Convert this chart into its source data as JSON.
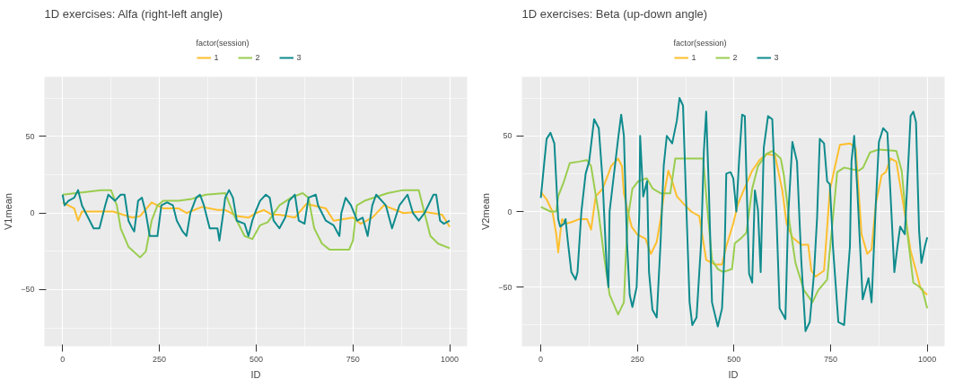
{
  "chart_data": [
    {
      "type": "line",
      "title": "1D exercises: Alfa (right-left angle)",
      "xlabel": "ID",
      "ylabel": "V1mean",
      "legend_title": "factor(session)",
      "legend": "top",
      "grid": true,
      "xlim": [
        -47,
        1045
      ],
      "ylim": [
        -87,
        89
      ],
      "xticks": [
        0,
        250,
        500,
        750,
        1000
      ],
      "yticks": [
        -50,
        0,
        50
      ],
      "series": [
        {
          "name": "1",
          "color": "#fdbf2d",
          "x": [
            0,
            30,
            40,
            50,
            90,
            130,
            180,
            200,
            230,
            260,
            300,
            320,
            360,
            400,
            420,
            450,
            480,
            500,
            520,
            540,
            560,
            600,
            630,
            680,
            700,
            750,
            770,
            800,
            830,
            860,
            880,
            930,
            980,
            1000
          ],
          "values": [
            7,
            3,
            -5,
            1,
            1,
            1,
            -3,
            -2,
            7,
            3,
            3,
            0,
            4,
            2,
            2,
            -2,
            -3,
            0,
            2,
            -1,
            -1,
            -3,
            6,
            3,
            -5,
            -3,
            -7,
            -3,
            5,
            2,
            0,
            1,
            -1,
            -9
          ]
        },
        {
          "name": "2",
          "color": "#9acd4f",
          "x": [
            0,
            100,
            125,
            140,
            150,
            170,
            200,
            215,
            230,
            245,
            260,
            300,
            330,
            370,
            420,
            440,
            470,
            490,
            510,
            530,
            560,
            590,
            620,
            635,
            650,
            670,
            690,
            740,
            750,
            760,
            780,
            840,
            880,
            920,
            930,
            950,
            970,
            1000
          ],
          "values": [
            12,
            15,
            15,
            5,
            -10,
            -22,
            -29,
            -25,
            -5,
            5,
            8,
            8,
            9,
            12,
            13,
            0,
            -15,
            -17,
            -8,
            -6,
            5,
            10,
            13,
            10,
            -10,
            -20,
            -24,
            -24,
            -18,
            5,
            8,
            13,
            15,
            15,
            5,
            -15,
            -20,
            -23
          ]
        },
        {
          "name": "3",
          "color": "#0f8b8d",
          "x": [
            0,
            5,
            15,
            30,
            40,
            50,
            70,
            80,
            95,
            100,
            110,
            118,
            135,
            150,
            160,
            170,
            180,
            185,
            195,
            205,
            215,
            225,
            245,
            255,
            270,
            285,
            295,
            310,
            320,
            330,
            345,
            355,
            365,
            380,
            400,
            405,
            415,
            420,
            430,
            440,
            450,
            470,
            480,
            490,
            500,
            510,
            525,
            535,
            545,
            560,
            575,
            585,
            600,
            610,
            625,
            635,
            654,
            660,
            680,
            700,
            715,
            720,
            731,
            745,
            761,
            775,
            788,
            800,
            810,
            835,
            851,
            870,
            891,
            905,
            920,
            935,
            958,
            965,
            975,
            985,
            1000
          ],
          "values": [
            12,
            5,
            8,
            10,
            15,
            5,
            -5,
            -10,
            -10,
            -5,
            5,
            12,
            8,
            12,
            12,
            -5,
            -10,
            -12,
            8,
            10,
            0,
            -15,
            -15,
            5,
            7,
            5,
            -5,
            -12,
            -15,
            0,
            10,
            12,
            5,
            -10,
            -10,
            -18,
            0,
            10,
            15,
            10,
            -5,
            -7,
            -15,
            -5,
            2,
            8,
            12,
            10,
            -5,
            -10,
            -3,
            8,
            12,
            -5,
            -7,
            10,
            12,
            5,
            -5,
            -8,
            -15,
            0,
            10,
            5,
            -5,
            -3,
            -15,
            5,
            12,
            5,
            -10,
            5,
            12,
            0,
            -5,
            0,
            12,
            12,
            -5,
            -7,
            -5
          ]
        }
      ]
    },
    {
      "type": "line",
      "title": "1D exercises: Beta (up-down angle)",
      "xlabel": "ID",
      "ylabel": "V2mean",
      "legend_title": "factor(session)",
      "legend": "top",
      "grid": true,
      "xlim": [
        -49,
        1045
      ],
      "ylim": [
        -89,
        89
      ],
      "xticks": [
        0,
        250,
        500,
        750,
        1000
      ],
      "yticks": [
        -50,
        0,
        50
      ],
      "series": [
        {
          "name": "1",
          "color": "#fdbf2d",
          "x": [
            0,
            15,
            30,
            40,
            45,
            50,
            55,
            65,
            80,
            100,
            120,
            130,
            142,
            160,
            175,
            182,
            200,
            210,
            215,
            225,
            235,
            249,
            271,
            285,
            300,
            310,
            318,
            330,
            340,
            352,
            370,
            389,
            410,
            428,
            450,
            469,
            480,
            498,
            510,
            525,
            547,
            566,
            584,
            606,
            625,
            636,
            651,
            674,
            692,
            700,
            711,
            733,
            748,
            759,
            774,
            800,
            815,
            830,
            845,
            856,
            867,
            882,
            893,
            905,
            920,
            938,
            957,
            972,
            983,
            1000
          ],
          "values": [
            13,
            8,
            0,
            -15,
            -27,
            -15,
            -5,
            -8,
            -7,
            -5,
            -5,
            -12,
            10,
            15,
            25,
            30,
            35,
            30,
            12,
            0,
            -10,
            -15,
            -18,
            -28,
            -20,
            -5,
            10,
            27,
            20,
            10,
            5,
            0,
            -3,
            -32,
            -35,
            -35,
            -23,
            -8,
            5,
            14,
            27,
            34,
            38,
            37,
            14,
            -8,
            -17,
            -22,
            -22,
            -39,
            -43,
            -39,
            14,
            27,
            44,
            45,
            42,
            -15,
            -28,
            -25,
            5,
            24,
            26,
            35,
            33,
            5,
            -26,
            -40,
            -51,
            -55
          ]
        },
        {
          "name": "2",
          "color": "#9acd4f",
          "x": [
            0,
            25,
            40,
            45,
            60,
            75,
            100,
            119,
            130,
            149,
            164,
            178,
            200,
            215,
            220,
            225,
            237,
            252,
            274,
            290,
            311,
            335,
            348,
            374,
            420,
            430,
            443,
            458,
            472,
            495,
            502,
            517,
            532,
            547,
            562,
            584,
            599,
            621,
            629,
            644,
            659,
            681,
            703,
            718,
            741,
            756,
            767,
            785,
            823,
            834,
            852,
            875,
            920,
            934,
            949,
            964,
            987,
            1000
          ],
          "values": [
            3,
            0,
            0,
            10,
            20,
            32,
            33,
            34,
            30,
            0,
            -30,
            -55,
            -68,
            -60,
            -30,
            -5,
            15,
            20,
            22,
            15,
            12,
            12,
            35,
            35,
            35,
            5,
            -32,
            -38,
            -40,
            -38,
            -21,
            -18,
            -14,
            15,
            30,
            38,
            40,
            35,
            24,
            -8,
            -34,
            -52,
            -60,
            -52,
            -45,
            -4,
            26,
            29,
            27,
            29,
            39,
            41,
            40,
            27,
            -15,
            -47,
            -51,
            -64
          ]
        },
        {
          "name": "3",
          "color": "#0f8b8d",
          "x": [
            0,
            8,
            15,
            25,
            35,
            40,
            45,
            50,
            60,
            64,
            70,
            79,
            90,
            95,
            105,
            116,
            125,
            138,
            150,
            160,
            171,
            175,
            178,
            201,
            208,
            215,
            223,
            230,
            237,
            248,
            255,
            257,
            265,
            275,
            280,
            289,
            300,
            310,
            318,
            326,
            340,
            352,
            359,
            368,
            377,
            385,
            392,
            403,
            415,
            422,
            428,
            435,
            443,
            458,
            469,
            476,
            480,
            491,
            498,
            506,
            513,
            521,
            528,
            532,
            539,
            547,
            554,
            562,
            569,
            577,
            588,
            599,
            610,
            618,
            633,
            640,
            651,
            663,
            674,
            685,
            696,
            707,
            715,
            722,
            733,
            741,
            748,
            756,
            770,
            785,
            800,
            804,
            811,
            819,
            833,
            848,
            856,
            867,
            875,
            886,
            897,
            908,
            915,
            923,
            930,
            942,
            957,
            964,
            971,
            979,
            985,
            994,
            1000
          ],
          "values": [
            9,
            30,
            48,
            52,
            45,
            20,
            -5,
            -10,
            -8,
            -5,
            -20,
            -40,
            -45,
            -40,
            0,
            25,
            33,
            61,
            55,
            20,
            -40,
            -50,
            0,
            50,
            64,
            50,
            -20,
            -55,
            -63,
            -50,
            0,
            50,
            10,
            20,
            -40,
            -65,
            -70,
            -20,
            30,
            50,
            45,
            60,
            75,
            70,
            0,
            -60,
            -75,
            -70,
            -20,
            40,
            66,
            14,
            -60,
            -76,
            -64,
            -23,
            25,
            26,
            22,
            0,
            33,
            64,
            63,
            24,
            -41,
            -47,
            14,
            1,
            -40,
            42,
            63,
            61,
            -4,
            -64,
            -71,
            -4,
            46,
            33,
            -32,
            -79,
            -73,
            -41,
            -4,
            48,
            45,
            20,
            18,
            -23,
            -73,
            -75,
            -23,
            33,
            50,
            15,
            -58,
            -44,
            -60,
            5,
            46,
            55,
            52,
            -4,
            -40,
            -23,
            -10,
            -15,
            63,
            66,
            59,
            -13,
            -34,
            -23,
            -17
          ]
        }
      ]
    }
  ]
}
